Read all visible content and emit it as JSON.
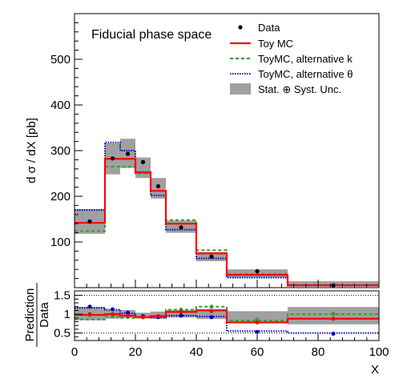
{
  "chart_data": {
    "type": "histogram",
    "annotation": "Fiducial phase space",
    "ylabel": "d σ / dX [pb]",
    "xlabel": "X",
    "ratio_ylabel_top": "Prediction",
    "ratio_ylabel_bottom": "Data",
    "xlim": [
      0,
      100
    ],
    "ylim": [
      0,
      600
    ],
    "ratio_ylim": [
      0.3,
      1.62
    ],
    "x_ticks": [
      0,
      20,
      40,
      60,
      80,
      100
    ],
    "x_tick_labels": [
      "0",
      "20",
      "40",
      "60",
      "80",
      "100"
    ],
    "y_ticks": [
      100,
      200,
      300,
      400,
      500
    ],
    "y_tick_labels": [
      "100",
      "200",
      "300",
      "400",
      "500"
    ],
    "ratio_ticks": [
      0.5,
      1,
      1.5
    ],
    "ratio_tick_labels": [
      "0.5",
      "1",
      "1.5"
    ],
    "ratio_dotted_lines": [
      0.5,
      1.5
    ],
    "bin_edges": [
      0,
      10,
      15,
      20,
      25,
      30,
      40,
      50,
      70,
      100
    ],
    "legend": [
      "Data",
      "Toy MC",
      "ToyMC, alternative k",
      "ToyMC, alternative θ",
      "Stat. ⊕ Syst. Unc."
    ],
    "uncertainty_band": {
      "name": "Stat. ⊕ Syst. Unc.",
      "color": "#a0a0a0",
      "low": [
        118,
        248,
        262,
        240,
        195,
        120,
        58,
        22,
        5
      ],
      "high": [
        172,
        316,
        326,
        285,
        240,
        147,
        78,
        40,
        14
      ]
    },
    "data": {
      "name": "Data",
      "x": [
        5,
        12.5,
        17.5,
        22.5,
        27.5,
        35,
        45,
        60,
        85
      ],
      "y": [
        145,
        283,
        293,
        275,
        222,
        132,
        68,
        36,
        5
      ]
    },
    "series": [
      {
        "name": "Toy MC",
        "color": "#ff0000",
        "style": "solid",
        "values": [
          142,
          282,
          282,
          252,
          212,
          140,
          75,
          28,
          5
        ]
      },
      {
        "name": "ToyMC, alternative k",
        "color": "#33a02c",
        "style": "dashed",
        "values": [
          124,
          265,
          265,
          250,
          212,
          148,
          82,
          30,
          6
        ]
      },
      {
        "name": "ToyMC, alternative θ",
        "color": "#0000cc",
        "style": "dotted",
        "values": [
          170,
          318,
          300,
          253,
          202,
          127,
          64,
          22,
          4
        ]
      }
    ],
    "ratio": {
      "band": {
        "low": [
          0.84,
          0.88,
          0.9,
          0.89,
          0.88,
          0.91,
          0.87,
          0.78,
          0.73
        ],
        "high": [
          1.19,
          1.12,
          1.11,
          1.04,
          1.07,
          1.11,
          1.14,
          1.08,
          1.19
        ]
      },
      "toy_mc": [
        0.98,
        1.0,
        0.96,
        0.92,
        0.95,
        1.06,
        1.1,
        0.78,
        0.88
      ],
      "alt_k": [
        0.86,
        0.94,
        0.9,
        0.91,
        0.95,
        1.12,
        1.2,
        0.83,
        1.0
      ],
      "alt_theta": [
        1.17,
        1.12,
        1.02,
        0.92,
        0.91,
        0.96,
        0.94,
        0.55,
        0.5
      ],
      "points_green_y": [
        0.97,
        0.95,
        0.95,
        0.92,
        0.95,
        1.12,
        1.2,
        0.86,
        1.01
      ],
      "points_red_y": [
        1.0,
        1.0,
        0.96,
        0.92,
        0.95,
        1.06,
        1.08,
        0.78,
        0.88
      ],
      "points_blue_y": [
        1.2,
        1.13,
        1.04,
        0.95,
        0.92,
        0.96,
        0.92,
        0.53,
        0.48
      ]
    }
  }
}
